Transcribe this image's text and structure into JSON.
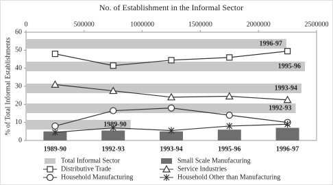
{
  "chart_data": [
    {
      "type": "hbar",
      "categories": [
        "1996-97",
        "1995-96",
        "1993-94",
        "1992-93",
        "1989-90"
      ],
      "series": [
        {
          "name": "Total Informal Sector",
          "color": "#c8c8c8",
          "values": [
            2240000,
            2400000,
            2370000,
            2320000,
            900000
          ]
        }
      ],
      "xlim": [
        0,
        2500000
      ],
      "xticks": [
        0,
        500000,
        1000000,
        1500000,
        2000000,
        2500000
      ]
    },
    {
      "type": "combo",
      "title": "No. of Establishment in the Informal Sector",
      "ylabel": "% of Total Informal Establishments",
      "categories": [
        "1989-90",
        "1992-93",
        "1993-94",
        "1995-96",
        "1996-97"
      ],
      "ylim": [
        0,
        60
      ],
      "yticks": [
        0,
        10,
        20,
        30,
        40,
        50,
        60
      ],
      "series": [
        {
          "name": "Small Scale Manufacuring",
          "kind": "bar",
          "color": "#6e6e6e",
          "values": [
            5,
            5.5,
            5,
            6,
            7
          ]
        },
        {
          "name": "Distributive Trade",
          "kind": "line",
          "marker": "square",
          "color": "#333333",
          "values": [
            48,
            41.5,
            44.5,
            46,
            49.5
          ]
        },
        {
          "name": "Service Industries",
          "kind": "line",
          "marker": "triangle",
          "color": "#333333",
          "values": [
            31,
            27.5,
            24,
            24.5,
            22.5
          ]
        },
        {
          "name": "Household Manufacturing",
          "kind": "line",
          "marker": "circle",
          "color": "#333333",
          "values": [
            8,
            16.5,
            18,
            14,
            10
          ]
        },
        {
          "name": "Household Other than Manufacturing",
          "kind": "line",
          "marker": "star",
          "color": "#333333",
          "values": [
            4.5,
            7,
            5.5,
            8,
            9
          ]
        }
      ]
    }
  ]
}
